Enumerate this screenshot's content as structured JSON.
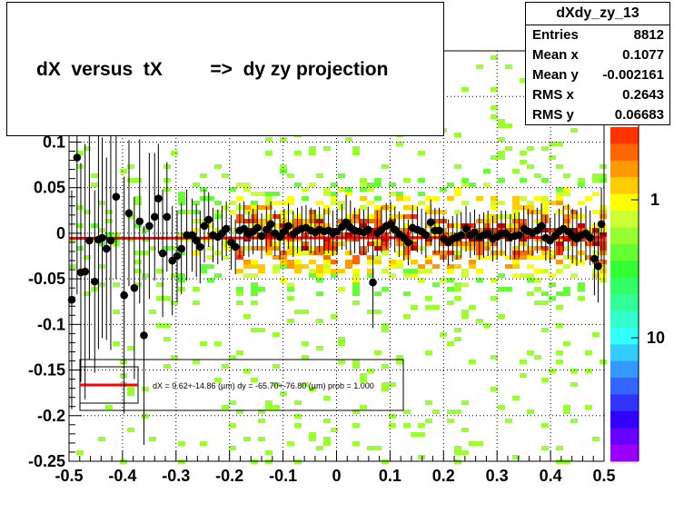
{
  "title": "dX  versus  tX         =>  dy zy projection",
  "stats": {
    "name": "dXdy_zy_13",
    "rows": [
      {
        "label": "Entries",
        "value": "8812"
      },
      {
        "label": "Mean x",
        "value": "0.1077"
      },
      {
        "label": "Mean y",
        "value": "-0.002161"
      },
      {
        "label": "RMS x",
        "value": "0.2643"
      },
      {
        "label": "RMS y",
        "value": "0.06683"
      }
    ]
  },
  "colors": {
    "marker": "#000000",
    "fit_line": "#ff0000",
    "frame": "#000000"
  },
  "chart_data": {
    "type": "scatter",
    "title": "dX  versus  tX         =>  dy zy projection",
    "xlim": [
      -0.5,
      0.5
    ],
    "ylim": [
      -0.25,
      0.2
    ],
    "x_ticks": [
      "-0.5",
      "-0.4",
      "-0.3",
      "-0.2",
      "-0.1",
      "0",
      "0.1",
      "0.2",
      "0.3",
      "0.4",
      "0.5"
    ],
    "y_ticks": [
      "-0.25",
      "-0.2",
      "-0.15",
      "-0.1",
      "-0.05",
      "0",
      "0.05",
      "0.1"
    ],
    "grid": true,
    "z_axis_labels": [
      "1",
      "10"
    ],
    "fit_legend": "dX =    9.62+-14.86 (µm) dy =  -65.70+-76.80 (µm) prob = 1.000",
    "fit_line": {
      "x": [
        -0.5,
        0.5
      ],
      "y": [
        -0.0055,
        -0.0045
      ]
    },
    "series": [
      {
        "points": [
          [
            -0.495,
            -0.073
          ],
          [
            -0.485,
            0.083
          ],
          [
            -0.478,
            -0.043
          ],
          [
            -0.47,
            -0.042
          ],
          [
            -0.462,
            -0.008
          ],
          [
            -0.452,
            -0.053
          ],
          [
            -0.445,
            -0.007
          ],
          [
            -0.438,
            -0.005
          ],
          [
            -0.43,
            -0.017
          ],
          [
            -0.422,
            -0.008
          ],
          [
            -0.412,
            0.04
          ],
          [
            -0.397,
            -0.068
          ],
          [
            -0.388,
            0.022
          ],
          [
            -0.378,
            -0.06
          ],
          [
            -0.368,
            0.013
          ],
          [
            -0.36,
            -0.112
          ],
          [
            -0.35,
            0.008
          ],
          [
            -0.34,
            0.018
          ],
          [
            -0.333,
            0.038
          ],
          [
            -0.325,
            -0.022
          ],
          [
            -0.317,
            0.018
          ],
          [
            -0.307,
            -0.03
          ],
          [
            -0.298,
            -0.025
          ],
          [
            -0.29,
            -0.017
          ],
          [
            -0.28,
            -0.002
          ],
          [
            -0.27,
            -0.002
          ],
          [
            -0.262,
            -0.008
          ],
          [
            -0.255,
            -0.015
          ],
          [
            -0.247,
            0.008
          ],
          [
            -0.239,
            0.015
          ],
          [
            -0.231,
            -0.002
          ],
          [
            -0.222,
            -0.004
          ],
          [
            -0.214,
            0.0
          ],
          [
            -0.206,
            0.005
          ],
          [
            -0.197,
            -0.01
          ],
          [
            -0.189,
            -0.015
          ],
          [
            -0.181,
            0.003
          ],
          [
            -0.173,
            0.005
          ],
          [
            -0.164,
            -0.001
          ],
          [
            -0.156,
            0.002
          ],
          [
            -0.148,
            0.006
          ],
          [
            -0.14,
            -0.003
          ],
          [
            -0.131,
            0.004
          ],
          [
            -0.123,
            0.01
          ],
          [
            -0.115,
            0.0
          ],
          [
            -0.106,
            -0.004
          ],
          [
            -0.098,
            0.002
          ],
          [
            -0.09,
            0.008
          ],
          [
            -0.081,
            -0.001
          ],
          [
            -0.073,
            0.003
          ],
          [
            -0.065,
            0.005
          ],
          [
            -0.057,
            0.006
          ],
          [
            -0.048,
            0.003
          ],
          [
            -0.04,
            0.001
          ],
          [
            -0.032,
            0.004
          ],
          [
            -0.023,
            0.002
          ],
          [
            -0.015,
            0.003
          ],
          [
            -0.007,
            0.0
          ],
          [
            0.001,
            0.002
          ],
          [
            0.01,
            0.007
          ],
          [
            0.018,
            0.012
          ],
          [
            0.026,
            0.006
          ],
          [
            0.034,
            0.003
          ],
          [
            0.043,
            0.002
          ],
          [
            0.051,
            0.001
          ],
          [
            0.059,
            0.004
          ],
          [
            0.068,
            -0.054
          ],
          [
            0.076,
            0.0
          ],
          [
            0.084,
            0.004
          ],
          [
            0.093,
            0.008
          ],
          [
            0.101,
            0.01
          ],
          [
            0.109,
            0.004
          ],
          [
            0.117,
            -0.001
          ],
          [
            0.126,
            -0.005
          ],
          [
            0.134,
            -0.01
          ],
          [
            0.142,
            0.006
          ],
          [
            0.151,
            0.004
          ],
          [
            0.159,
            0.002
          ],
          [
            0.167,
            -0.002
          ],
          [
            0.176,
            0.012
          ],
          [
            0.184,
            0.003
          ],
          [
            0.192,
            0.003
          ],
          [
            0.2,
            -0.006
          ],
          [
            0.209,
            -0.01
          ],
          [
            0.217,
            -0.006
          ],
          [
            0.225,
            -0.004
          ],
          [
            0.233,
            -0.002
          ],
          [
            0.242,
            0.005
          ],
          [
            0.25,
            -0.002
          ],
          [
            0.258,
            0.001
          ],
          [
            0.267,
            -0.004
          ],
          [
            0.275,
            -0.002
          ],
          [
            0.283,
            0.0
          ],
          [
            0.292,
            -0.006
          ],
          [
            0.3,
            -0.004
          ],
          [
            0.308,
            0.0
          ],
          [
            0.316,
            0.0
          ],
          [
            0.325,
            -0.004
          ],
          [
            0.333,
            -0.003
          ],
          [
            0.341,
            -0.002
          ],
          [
            0.35,
            0.005
          ],
          [
            0.358,
            0.002
          ],
          [
            0.366,
            0.0
          ],
          [
            0.375,
            0.003
          ],
          [
            0.383,
            0.008
          ],
          [
            0.391,
            -0.005
          ],
          [
            0.399,
            -0.008
          ],
          [
            0.408,
            -0.003
          ],
          [
            0.416,
            0.002
          ],
          [
            0.424,
            0.005
          ],
          [
            0.433,
            0.002
          ],
          [
            0.441,
            -0.003
          ],
          [
            0.449,
            -0.006
          ],
          [
            0.457,
            -0.002
          ],
          [
            0.466,
            0.0
          ],
          [
            0.474,
            -0.005
          ],
          [
            0.482,
            -0.028
          ],
          [
            0.489,
            -0.036
          ],
          [
            0.495,
            0.01
          ]
        ],
        "errors": [
          0.12,
          0.15,
          0.12,
          0.14,
          0.13,
          0.1,
          0.12,
          0.11,
          0.1,
          0.12,
          0.09,
          0.13,
          0.08,
          0.1,
          0.09,
          0.12,
          0.08,
          0.07,
          0.06,
          0.07,
          0.06,
          0.06,
          0.05,
          0.05,
          0.05,
          0.04,
          0.04,
          0.04,
          0.04,
          0.03,
          0.03,
          0.03,
          0.03,
          0.03,
          0.03,
          0.03,
          0.03,
          0.03,
          0.025,
          0.025,
          0.025,
          0.025,
          0.025,
          0.025,
          0.025,
          0.025,
          0.025,
          0.025,
          0.025,
          0.025,
          0.025,
          0.025,
          0.025,
          0.025,
          0.025,
          0.025,
          0.025,
          0.025,
          0.025,
          0.025,
          0.03,
          0.03,
          0.025,
          0.025,
          0.025,
          0.025,
          0.05,
          0.025,
          0.025,
          0.025,
          0.025,
          0.025,
          0.025,
          0.025,
          0.025,
          0.025,
          0.025,
          0.025,
          0.025,
          0.025,
          0.025,
          0.025,
          0.025,
          0.025,
          0.025,
          0.025,
          0.025,
          0.025,
          0.025,
          0.025,
          0.025,
          0.025,
          0.025,
          0.025,
          0.025,
          0.025,
          0.025,
          0.025,
          0.025,
          0.025,
          0.025,
          0.025,
          0.025,
          0.025,
          0.025,
          0.025,
          0.025,
          0.025,
          0.025,
          0.025,
          0.03,
          0.03,
          0.03,
          0.03,
          0.03,
          0.03,
          0.04,
          0.04,
          0.04
        ]
      }
    ]
  }
}
